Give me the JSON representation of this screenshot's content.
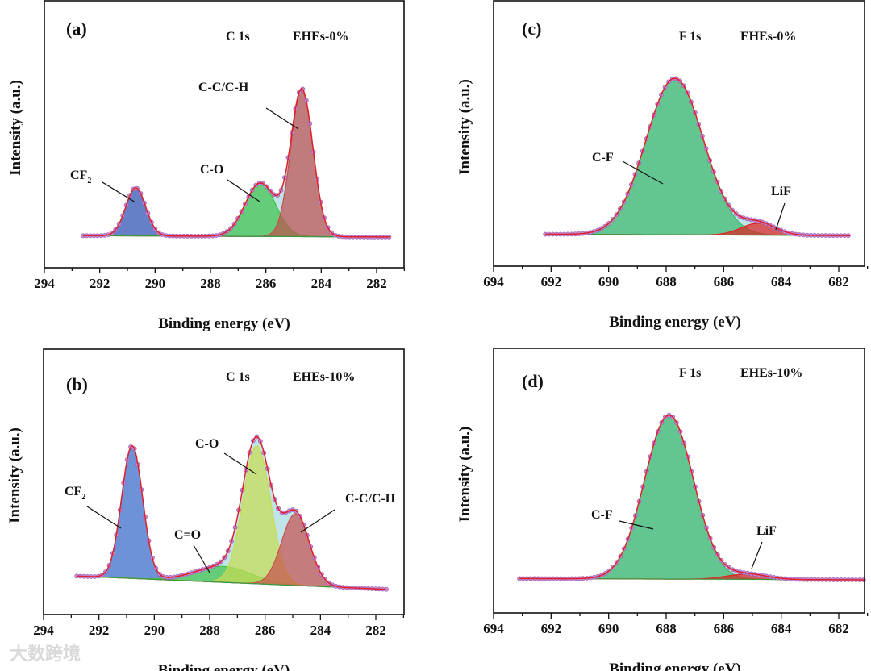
{
  "watermark": "大数跨境",
  "chart_data": [
    {
      "type": "line",
      "panel_label": "(a)",
      "core_level": "C 1s",
      "sample": "EHEs-0%",
      "xlabel": "Binding energy (eV)",
      "ylabel": "Intensity (a.u.)",
      "xlim": [
        294,
        281
      ],
      "ylim": [
        0,
        1
      ],
      "x_ticks": [
        294,
        292,
        290,
        288,
        286,
        284,
        282
      ],
      "data_range": [
        292.6,
        281.5
      ],
      "background": [
        0.12,
        0.115
      ],
      "components": [
        {
          "name": "CF2",
          "label": "CF",
          "sub": "2",
          "center": 290.7,
          "height": 0.18,
          "sigma": 0.36,
          "color": "#3f55b8"
        },
        {
          "name": "C-O",
          "label": "C-O",
          "sub": "",
          "center": 286.2,
          "height": 0.2,
          "sigma": 0.55,
          "color": "#3ec24a"
        },
        {
          "name": "C-C/C-H",
          "label": "C-C/C-H",
          "sub": "",
          "center": 284.7,
          "height": 0.55,
          "sigma": 0.4,
          "color": "#c0504d"
        }
      ]
    },
    {
      "type": "line",
      "panel_label": "(b)",
      "core_level": "C 1s",
      "sample": "EHEs-10%",
      "xlabel": "Binding energy (eV)",
      "ylabel": "Intensity (a.u.)",
      "xlim": [
        294,
        281
      ],
      "ylim": [
        0,
        1
      ],
      "x_ticks": [
        294,
        292,
        290,
        288,
        286,
        284,
        282
      ],
      "data_range": [
        292.8,
        281.6
      ],
      "background": [
        0.145,
        0.095
      ],
      "components": [
        {
          "name": "CF2",
          "label": "CF",
          "sub": "2",
          "center": 290.8,
          "height": 0.5,
          "sigma": 0.38,
          "color": "#4a6fd0"
        },
        {
          "name": "C=O",
          "label": "C=O",
          "sub": "",
          "center": 287.5,
          "height": 0.06,
          "sigma": 1.0,
          "color": "#3ec24a"
        },
        {
          "name": "C-O",
          "label": "C-O",
          "sub": "",
          "center": 286.3,
          "height": 0.52,
          "sigma": 0.5,
          "color": "#c8dc50"
        },
        {
          "name": "C-C/C-H",
          "label": "C-C/C-H",
          "sub": "",
          "center": 284.9,
          "height": 0.27,
          "sigma": 0.5,
          "color": "#c8504d"
        }
      ]
    },
    {
      "type": "line",
      "panel_label": "(c)",
      "core_level": "F 1s",
      "sample": "EHEs-0%",
      "xlabel": "Binding energy (eV)",
      "ylabel": "Intensity (a.u.)",
      "xlim": [
        694,
        681
      ],
      "ylim": [
        0,
        1
      ],
      "x_ticks": [
        694,
        692,
        690,
        688,
        686,
        684,
        682
      ],
      "data_range": [
        692.2,
        681.6
      ],
      "background": [
        0.12,
        0.115
      ],
      "components": [
        {
          "name": "C-F",
          "label": "C-F",
          "sub": "",
          "center": 687.7,
          "height": 0.59,
          "sigma": 1.0,
          "color": "#3cb86a"
        },
        {
          "name": "LiF",
          "label": "LiF",
          "sub": "",
          "center": 684.8,
          "height": 0.045,
          "sigma": 0.6,
          "color": "#e02020"
        }
      ]
    },
    {
      "type": "line",
      "panel_label": "(d)",
      "core_level": "F 1s",
      "sample": "EHEs-10%",
      "xlabel": "Binding energy (eV)",
      "ylabel": "Intensity (a.u.)",
      "xlim": [
        694,
        681
      ],
      "ylim": [
        0,
        1
      ],
      "x_ticks": [
        694,
        692,
        690,
        688,
        686,
        684,
        682
      ],
      "data_range": [
        693.1,
        681.1
      ],
      "background": [
        0.13,
        0.125
      ],
      "components": [
        {
          "name": "C-F",
          "label": "C-F",
          "sub": "",
          "center": 687.9,
          "height": 0.62,
          "sigma": 0.85,
          "color": "#3cb86a"
        },
        {
          "name": "LiF",
          "label": "LiF",
          "sub": "",
          "center": 685.2,
          "height": 0.02,
          "sigma": 0.7,
          "color": "#e02020"
        }
      ]
    }
  ]
}
